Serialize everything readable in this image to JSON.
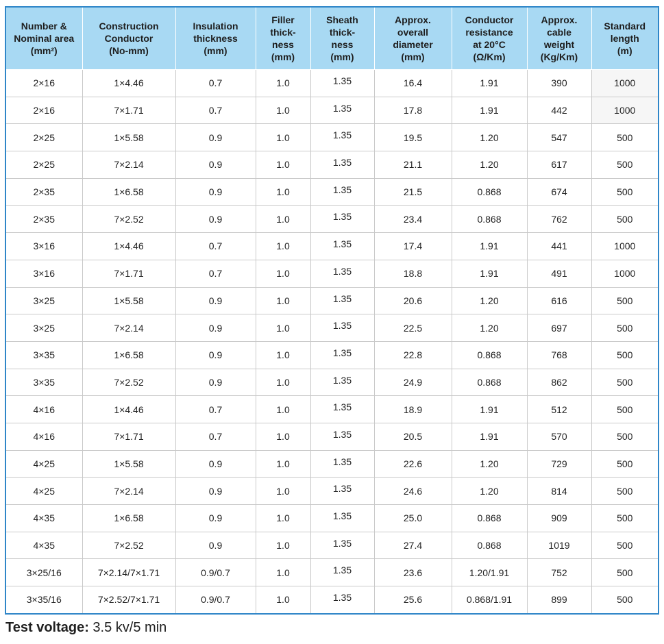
{
  "table": {
    "headers": [
      "Number &\nNominal area\n(mm²)",
      "Construction\nConductor\n(No-mm)",
      "Insulation\nthickness\n(mm)",
      "Filler\nthick-\nness\n(mm)",
      "Sheath\nthick-\nness\n(mm)",
      "Approx.\noverall\ndiameter\n(mm)",
      "Conductor\nresistance\nat 20°C\n(Ω/Km)",
      "Approx.\ncable\nweight\n(Kg/Km)",
      "Standard\nlength\n(m)"
    ],
    "rows": [
      [
        "2×16",
        "1×4.46",
        "0.7",
        "1.0",
        "1.35",
        "16.4",
        "1.91",
        "390",
        "1000"
      ],
      [
        "2×16",
        "7×1.71",
        "0.7",
        "1.0",
        "1.35",
        "17.8",
        "1.91",
        "442",
        "1000"
      ],
      [
        "2×25",
        "1×5.58",
        "0.9",
        "1.0",
        "1.35",
        "19.5",
        "1.20",
        "547",
        "500"
      ],
      [
        "2×25",
        "7×2.14",
        "0.9",
        "1.0",
        "1.35",
        "21.1",
        "1.20",
        "617",
        "500"
      ],
      [
        "2×35",
        "1×6.58",
        "0.9",
        "1.0",
        "1.35",
        "21.5",
        "0.868",
        "674",
        "500"
      ],
      [
        "2×35",
        "7×2.52",
        "0.9",
        "1.0",
        "1.35",
        "23.4",
        "0.868",
        "762",
        "500"
      ],
      [
        "3×16",
        "1×4.46",
        "0.7",
        "1.0",
        "1.35",
        "17.4",
        "1.91",
        "441",
        "1000"
      ],
      [
        "3×16",
        "7×1.71",
        "0.7",
        "1.0",
        "1.35",
        "18.8",
        "1.91",
        "491",
        "1000"
      ],
      [
        "3×25",
        "1×5.58",
        "0.9",
        "1.0",
        "1.35",
        "20.6",
        "1.20",
        "616",
        "500"
      ],
      [
        "3×25",
        "7×2.14",
        "0.9",
        "1.0",
        "1.35",
        "22.5",
        "1.20",
        "697",
        "500"
      ],
      [
        "3×35",
        "1×6.58",
        "0.9",
        "1.0",
        "1.35",
        "22.8",
        "0.868",
        "768",
        "500"
      ],
      [
        "3×35",
        "7×2.52",
        "0.9",
        "1.0",
        "1.35",
        "24.9",
        "0.868",
        "862",
        "500"
      ],
      [
        "4×16",
        "1×4.46",
        "0.7",
        "1.0",
        "1.35",
        "18.9",
        "1.91",
        "512",
        "500"
      ],
      [
        "4×16",
        "7×1.71",
        "0.7",
        "1.0",
        "1.35",
        "20.5",
        "1.91",
        "570",
        "500"
      ],
      [
        "4×25",
        "1×5.58",
        "0.9",
        "1.0",
        "1.35",
        "22.6",
        "1.20",
        "729",
        "500"
      ],
      [
        "4×25",
        "7×2.14",
        "0.9",
        "1.0",
        "1.35",
        "24.6",
        "1.20",
        "814",
        "500"
      ],
      [
        "4×35",
        "1×6.58",
        "0.9",
        "1.0",
        "1.35",
        "25.0",
        "0.868",
        "909",
        "500"
      ],
      [
        "4×35",
        "7×2.52",
        "0.9",
        "1.0",
        "1.35",
        "27.4",
        "0.868",
        "1019",
        "500"
      ],
      [
        "3×25/16",
        "7×2.14/7×1.71",
        "0.9/0.7",
        "1.0",
        "1.35",
        "23.6",
        "1.20/1.91",
        "752",
        "500"
      ],
      [
        "3×35/16",
        "7×2.52/7×1.71",
        "0.9/0.7",
        "1.0",
        "1.35",
        "25.6",
        "0.868/1.91",
        "899",
        "500"
      ]
    ]
  },
  "footer": {
    "label": "Test voltage:",
    "value": " 3.5 kv/5 min"
  },
  "colors": {
    "header_bg": "#a8d9f3",
    "border": "#2f86c8"
  }
}
